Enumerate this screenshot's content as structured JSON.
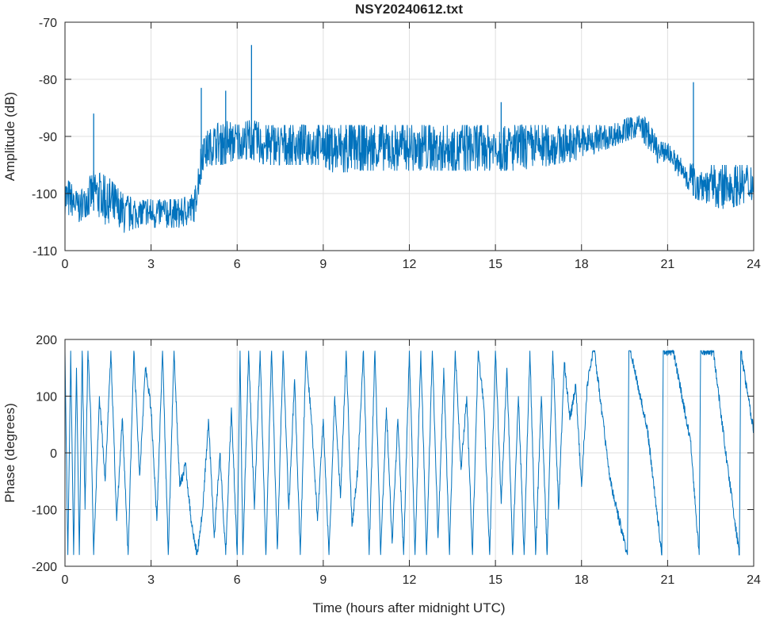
{
  "chart_data": [
    {
      "type": "line",
      "title": "NSY20240612.txt",
      "xlabel": "",
      "ylabel": "Amplitude (dB)",
      "xlim": [
        0,
        24
      ],
      "ylim": [
        -110,
        -70
      ],
      "xticks": [
        "0",
        "3",
        "6",
        "9",
        "12",
        "15",
        "18",
        "21",
        "24"
      ],
      "yticks": [
        "-110",
        "-100",
        "-90",
        "-80",
        "-70"
      ],
      "grid": true,
      "color": "#0072BD",
      "envelope": {
        "x": [
          0,
          0.5,
          1,
          1.5,
          2,
          2.5,
          3,
          3.5,
          4,
          4.5,
          4.6,
          4.8,
          5,
          5.5,
          6,
          6.5,
          7,
          8,
          9,
          9.5,
          10,
          11,
          12,
          13,
          14,
          15,
          16,
          17,
          18,
          19,
          20,
          20.3,
          20.7,
          21,
          21.5,
          22,
          23,
          24
        ],
        "min": [
          -104,
          -105,
          -103,
          -106,
          -107,
          -106,
          -106,
          -106,
          -106,
          -105,
          -102,
          -96,
          -95,
          -95,
          -94,
          -94,
          -95,
          -95,
          -95,
          -97,
          -96,
          -96,
          -96,
          -96,
          -96,
          -96,
          -96,
          -95,
          -94,
          -92,
          -90,
          -92,
          -95,
          -94,
          -98,
          -101,
          -103,
          -101
        ],
        "max": [
          -97,
          -100,
          -96,
          -97,
          -100,
          -101,
          -101,
          -101,
          -101,
          -100,
          -97,
          -89,
          -89,
          -87,
          -88,
          -87,
          -88,
          -88,
          -88,
          -88,
          -88,
          -88,
          -88,
          -88,
          -88,
          -88,
          -88,
          -88,
          -88,
          -88,
          -86,
          -87,
          -91,
          -91,
          -94,
          -95,
          -95,
          -95
        ]
      },
      "spikes": [
        {
          "x": 1.0,
          "y": -86
        },
        {
          "x": 4.75,
          "y": -81.5
        },
        {
          "x": 5.6,
          "y": -82
        },
        {
          "x": 6.5,
          "y": -74
        },
        {
          "x": 15.2,
          "y": -84
        },
        {
          "x": 21.9,
          "y": -80.5
        }
      ]
    },
    {
      "type": "line",
      "title": "",
      "xlabel": "Time (hours after midnight UTC)",
      "ylabel": "Phase (degrees)",
      "xlim": [
        0,
        24
      ],
      "ylim": [
        -200,
        200
      ],
      "xticks": [
        "0",
        "3",
        "6",
        "9",
        "12",
        "15",
        "18",
        "21",
        "24"
      ],
      "yticks": [
        "-200",
        "-100",
        "0",
        "100",
        "200"
      ],
      "grid": true,
      "color": "#0072BD",
      "x": [
        0,
        0.1,
        0.2,
        0.3,
        0.4,
        0.5,
        0.6,
        0.7,
        0.8,
        0.9,
        1.0,
        1.2,
        1.4,
        1.6,
        1.8,
        2.0,
        2.2,
        2.4,
        2.6,
        2.8,
        3.0,
        3.2,
        3.4,
        3.6,
        3.8,
        4.0,
        4.2,
        4.4,
        4.6,
        4.8,
        5.0,
        5.2,
        5.4,
        5.6,
        5.8,
        6.0,
        6.1,
        6.2,
        6.4,
        6.6,
        6.8,
        7.0,
        7.2,
        7.4,
        7.6,
        7.8,
        8.0,
        8.2,
        8.4,
        8.6,
        8.8,
        9.0,
        9.2,
        9.4,
        9.6,
        9.8,
        10.0,
        10.2,
        10.4,
        10.6,
        10.8,
        11.0,
        11.2,
        11.4,
        11.6,
        11.8,
        12.0,
        12.2,
        12.4,
        12.6,
        12.8,
        13.0,
        13.2,
        13.4,
        13.6,
        13.8,
        14.0,
        14.2,
        14.4,
        14.6,
        14.8,
        15.0,
        15.2,
        15.4,
        15.6,
        15.8,
        16.0,
        16.2,
        16.4,
        16.6,
        16.8,
        17.0,
        17.2,
        17.4,
        17.6,
        17.8,
        18.0,
        18.2,
        18.4,
        18.45,
        19.0,
        19.6,
        19.65,
        19.7,
        20.3,
        20.8,
        20.85,
        21.2,
        21.8,
        22.1,
        22.15,
        22.6,
        23.0,
        23.5,
        23.55,
        23.8,
        24.0
      ],
      "y": [
        180,
        -180,
        180,
        -180,
        150,
        -180,
        180,
        -100,
        180,
        60,
        -180,
        100,
        -50,
        180,
        -120,
        60,
        -180,
        180,
        -40,
        150,
        80,
        -120,
        180,
        -180,
        180,
        -60,
        -20,
        -120,
        -180,
        -100,
        60,
        -150,
        0,
        -180,
        80,
        -180,
        180,
        -180,
        180,
        -100,
        180,
        -180,
        180,
        -170,
        180,
        -100,
        130,
        -180,
        180,
        50,
        -120,
        60,
        -180,
        100,
        -80,
        180,
        -130,
        -30,
        180,
        -180,
        180,
        -180,
        80,
        -160,
        60,
        -180,
        180,
        -180,
        180,
        -180,
        180,
        -150,
        150,
        -180,
        180,
        -30,
        100,
        -180,
        180,
        80,
        -180,
        180,
        -90,
        150,
        -180,
        100,
        -180,
        180,
        -180,
        100,
        -180,
        180,
        -100,
        160,
        60,
        120,
        -60,
        120,
        180,
        180,
        -50,
        -180,
        180,
        180,
        40,
        -180,
        180,
        180,
        20,
        -180,
        180,
        180,
        10,
        -180,
        180,
        100,
        40
      ]
    }
  ]
}
